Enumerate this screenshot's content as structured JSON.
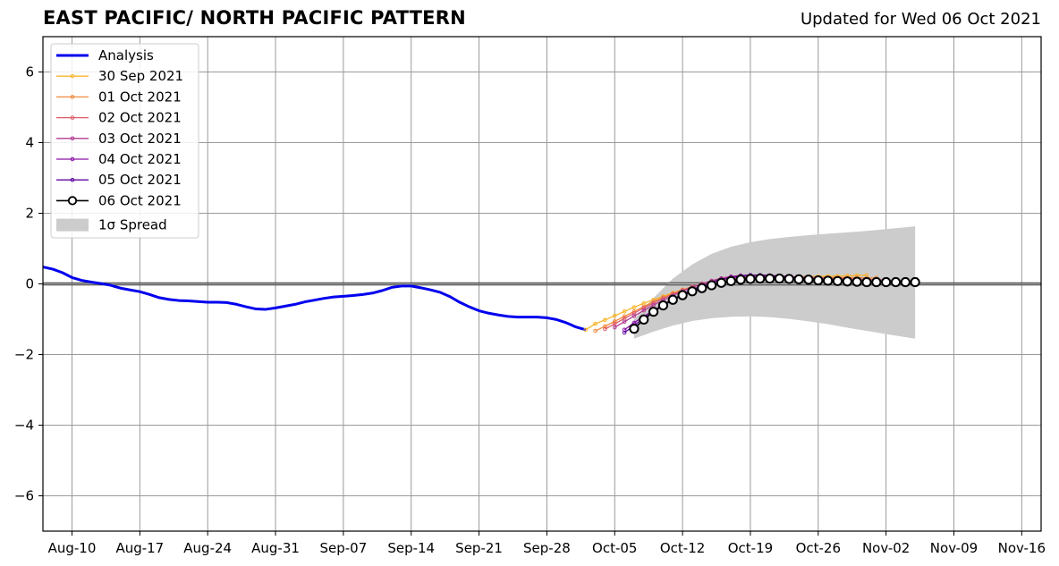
{
  "header": {
    "title": "EAST PACIFIC/ NORTH PACIFIC PATTERN",
    "updated": "Updated for Wed 06 Oct 2021"
  },
  "chart_data": {
    "type": "line",
    "title": "EAST PACIFIC/ NORTH PACIFIC PATTERN",
    "subtitle": "Updated for Wed 06 Oct 2021",
    "xlabel": "",
    "ylabel": "",
    "ylim": [
      -7,
      7
    ],
    "xlim": [
      "2021-08-07",
      "2021-11-18"
    ],
    "grid": true,
    "legend_position": "upper-left",
    "x_tick_labels": [
      "Aug-10",
      "Aug-17",
      "Aug-24",
      "Aug-31",
      "Sep-07",
      "Sep-14",
      "Sep-21",
      "Sep-28",
      "Oct-05",
      "Oct-12",
      "Oct-19",
      "Oct-26",
      "Nov-02",
      "Nov-09",
      "Nov-16"
    ],
    "x_tick_dates": [
      "2021-08-10",
      "2021-08-17",
      "2021-08-24",
      "2021-08-31",
      "2021-09-07",
      "2021-09-14",
      "2021-09-21",
      "2021-09-28",
      "2021-10-05",
      "2021-10-12",
      "2021-10-19",
      "2021-10-26",
      "2021-11-02",
      "2021-11-09",
      "2021-11-16"
    ],
    "y_tick_labels": [
      "−6",
      "−4",
      "−2",
      "0",
      "2",
      "4",
      "6"
    ],
    "y_ticks": [
      -6,
      -4,
      -2,
      0,
      2,
      4,
      6
    ],
    "analysis": {
      "name": "Analysis",
      "color": "#0000ee",
      "x": [
        "2021-08-07",
        "2021-08-08",
        "2021-08-09",
        "2021-08-10",
        "2021-08-11",
        "2021-08-12",
        "2021-08-13",
        "2021-08-14",
        "2021-08-15",
        "2021-08-16",
        "2021-08-17",
        "2021-08-18",
        "2021-08-19",
        "2021-08-20",
        "2021-08-21",
        "2021-08-22",
        "2021-08-23",
        "2021-08-24",
        "2021-08-25",
        "2021-08-26",
        "2021-08-27",
        "2021-08-28",
        "2021-08-29",
        "2021-08-30",
        "2021-08-31",
        "2021-09-01",
        "2021-09-02",
        "2021-09-03",
        "2021-09-04",
        "2021-09-05",
        "2021-09-06",
        "2021-09-07",
        "2021-09-08",
        "2021-09-09",
        "2021-09-10",
        "2021-09-11",
        "2021-09-12",
        "2021-09-13",
        "2021-09-14",
        "2021-09-15",
        "2021-09-16",
        "2021-09-17",
        "2021-09-18",
        "2021-09-19",
        "2021-09-20",
        "2021-09-21",
        "2021-09-22",
        "2021-09-23",
        "2021-09-24",
        "2021-09-25",
        "2021-09-26",
        "2021-09-27",
        "2021-09-28",
        "2021-09-29",
        "2021-09-30",
        "2021-10-01",
        "2021-10-02"
      ],
      "y": [
        0.48,
        0.42,
        0.32,
        0.18,
        0.1,
        0.05,
        0.01,
        -0.04,
        -0.12,
        -0.17,
        -0.22,
        -0.3,
        -0.39,
        -0.44,
        -0.47,
        -0.48,
        -0.5,
        -0.52,
        -0.52,
        -0.53,
        -0.58,
        -0.65,
        -0.71,
        -0.72,
        -0.68,
        -0.63,
        -0.58,
        -0.51,
        -0.46,
        -0.41,
        -0.37,
        -0.35,
        -0.33,
        -0.3,
        -0.26,
        -0.19,
        -0.1,
        -0.06,
        -0.06,
        -0.11,
        -0.17,
        -0.24,
        -0.36,
        -0.52,
        -0.65,
        -0.76,
        -0.83,
        -0.88,
        -0.92,
        -0.94,
        -0.94,
        -0.94,
        -0.96,
        -1.01,
        -1.1,
        -1.22,
        -1.3
      ]
    },
    "forecasts": [
      {
        "name": "30 Sep 2021",
        "color": "#f9b52f",
        "x": [
          "2021-10-02",
          "2021-10-03",
          "2021-10-04",
          "2021-10-05",
          "2021-10-06",
          "2021-10-07",
          "2021-10-08",
          "2021-10-09",
          "2021-10-10",
          "2021-10-11",
          "2021-10-12",
          "2021-10-13",
          "2021-10-14",
          "2021-10-15",
          "2021-10-16",
          "2021-10-17",
          "2021-10-18",
          "2021-10-19",
          "2021-10-20",
          "2021-10-21",
          "2021-10-22",
          "2021-10-23",
          "2021-10-24",
          "2021-10-25",
          "2021-10-26",
          "2021-10-27",
          "2021-10-28",
          "2021-10-29",
          "2021-10-30",
          "2021-10-31"
        ],
        "y": [
          -1.3,
          -1.13,
          -1.02,
          -0.9,
          -0.78,
          -0.66,
          -0.55,
          -0.45,
          -0.35,
          -0.25,
          -0.16,
          -0.08,
          0.0,
          0.06,
          0.1,
          0.13,
          0.15,
          0.16,
          0.17,
          0.18,
          0.19,
          0.2,
          0.2,
          0.21,
          0.21,
          0.22,
          0.22,
          0.23,
          0.24,
          0.25
        ]
      },
      {
        "name": "01 Oct 2021",
        "color": "#f28b3d",
        "x": [
          "2021-10-03",
          "2021-10-04",
          "2021-10-05",
          "2021-10-06",
          "2021-10-07",
          "2021-10-08",
          "2021-10-09",
          "2021-10-10",
          "2021-10-11",
          "2021-10-12",
          "2021-10-13",
          "2021-10-14",
          "2021-10-15",
          "2021-10-16",
          "2021-10-17",
          "2021-10-18",
          "2021-10-19",
          "2021-10-20",
          "2021-10-21",
          "2021-10-22",
          "2021-10-23",
          "2021-10-24",
          "2021-10-25",
          "2021-10-26",
          "2021-10-27",
          "2021-10-28",
          "2021-10-29",
          "2021-10-30",
          "2021-10-31",
          "2021-11-01"
        ],
        "y": [
          -1.33,
          -1.2,
          -1.06,
          -0.92,
          -0.78,
          -0.64,
          -0.5,
          -0.38,
          -0.27,
          -0.17,
          -0.08,
          0.0,
          0.07,
          0.12,
          0.15,
          0.17,
          0.18,
          0.18,
          0.19,
          0.19,
          0.19,
          0.19,
          0.19,
          0.18,
          0.18,
          0.18,
          0.18,
          0.18,
          0.17,
          0.17
        ]
      },
      {
        "name": "02 Oct 2021",
        "color": "#de5d6a",
        "x": [
          "2021-10-04",
          "2021-10-05",
          "2021-10-06",
          "2021-10-07",
          "2021-10-08",
          "2021-10-09",
          "2021-10-10",
          "2021-10-11",
          "2021-10-12",
          "2021-10-13",
          "2021-10-14",
          "2021-10-15",
          "2021-10-16",
          "2021-10-17",
          "2021-10-18",
          "2021-10-19",
          "2021-10-20",
          "2021-10-21",
          "2021-10-22",
          "2021-10-23",
          "2021-10-24",
          "2021-10-25",
          "2021-10-26",
          "2021-10-27",
          "2021-10-28",
          "2021-10-29",
          "2021-10-30",
          "2021-10-31",
          "2021-11-01",
          "2021-11-02"
        ],
        "y": [
          -1.28,
          -1.13,
          -0.98,
          -0.83,
          -0.68,
          -0.54,
          -0.41,
          -0.29,
          -0.18,
          -0.08,
          0.01,
          0.08,
          0.13,
          0.17,
          0.19,
          0.2,
          0.21,
          0.21,
          0.21,
          0.2,
          0.2,
          0.19,
          0.18,
          0.17,
          0.16,
          0.15,
          0.14,
          0.13,
          0.12,
          0.11
        ]
      },
      {
        "name": "03 Oct 2021",
        "color": "#b23d94",
        "x": [
          "2021-10-05",
          "2021-10-06",
          "2021-10-07",
          "2021-10-08",
          "2021-10-09",
          "2021-10-10",
          "2021-10-11",
          "2021-10-12",
          "2021-10-13",
          "2021-10-14",
          "2021-10-15",
          "2021-10-16",
          "2021-10-17",
          "2021-10-18",
          "2021-10-19",
          "2021-10-20",
          "2021-10-21",
          "2021-10-22",
          "2021-10-23",
          "2021-10-24",
          "2021-10-25",
          "2021-10-26",
          "2021-10-27",
          "2021-10-28",
          "2021-10-29",
          "2021-10-30",
          "2021-10-31",
          "2021-11-01",
          "2021-11-02",
          "2021-11-03"
        ],
        "y": [
          -1.23,
          -1.07,
          -0.91,
          -0.75,
          -0.6,
          -0.46,
          -0.33,
          -0.21,
          -0.1,
          0.0,
          0.09,
          0.16,
          0.21,
          0.24,
          0.25,
          0.25,
          0.24,
          0.23,
          0.21,
          0.19,
          0.17,
          0.15,
          0.13,
          0.11,
          0.1,
          0.09,
          0.08,
          0.07,
          0.07,
          0.06
        ]
      },
      {
        "name": "04 Oct 2021",
        "color": "#8a13a8",
        "x": [
          "2021-10-06",
          "2021-10-07",
          "2021-10-08",
          "2021-10-09",
          "2021-10-10",
          "2021-10-11",
          "2021-10-12",
          "2021-10-13",
          "2021-10-14",
          "2021-10-15",
          "2021-10-16",
          "2021-10-17",
          "2021-10-18",
          "2021-10-19",
          "2021-10-20",
          "2021-10-21",
          "2021-10-22",
          "2021-10-23",
          "2021-10-24",
          "2021-10-25",
          "2021-10-26",
          "2021-10-27",
          "2021-10-28",
          "2021-10-29",
          "2021-10-30",
          "2021-10-31",
          "2021-11-01",
          "2021-11-02",
          "2021-11-03",
          "2021-11-04"
        ],
        "y": [
          -1.3,
          -1.1,
          -0.92,
          -0.75,
          -0.58,
          -0.43,
          -0.29,
          -0.16,
          -0.05,
          0.05,
          0.13,
          0.19,
          0.23,
          0.25,
          0.25,
          0.24,
          0.22,
          0.2,
          0.17,
          0.14,
          0.12,
          0.1,
          0.08,
          0.07,
          0.06,
          0.05,
          0.05,
          0.04,
          0.04,
          0.04
        ]
      },
      {
        "name": "05 Oct 2021",
        "color": "#5c0aa0",
        "x": [
          "2021-10-06",
          "2021-10-07",
          "2021-10-08",
          "2021-10-09",
          "2021-10-10",
          "2021-10-11",
          "2021-10-12",
          "2021-10-13",
          "2021-10-14",
          "2021-10-15",
          "2021-10-16",
          "2021-10-17",
          "2021-10-18",
          "2021-10-19",
          "2021-10-20",
          "2021-10-21",
          "2021-10-22",
          "2021-10-23",
          "2021-10-24",
          "2021-10-25",
          "2021-10-26",
          "2021-10-27",
          "2021-10-28",
          "2021-10-29",
          "2021-10-30",
          "2021-10-31",
          "2021-11-01",
          "2021-11-02",
          "2021-11-03",
          "2021-11-04"
        ],
        "y": [
          -1.38,
          -1.18,
          -0.97,
          -0.78,
          -0.6,
          -0.44,
          -0.3,
          -0.17,
          -0.06,
          0.04,
          0.12,
          0.18,
          0.22,
          0.24,
          0.24,
          0.23,
          0.21,
          0.18,
          0.15,
          0.12,
          0.1,
          0.08,
          0.07,
          0.06,
          0.05,
          0.05,
          0.05,
          0.05,
          0.05,
          0.05
        ]
      },
      {
        "name": "06 Oct 2021",
        "color": "#000000",
        "open_markers": true,
        "x": [
          "2021-10-07",
          "2021-10-08",
          "2021-10-09",
          "2021-10-10",
          "2021-10-11",
          "2021-10-12",
          "2021-10-13",
          "2021-10-14",
          "2021-10-15",
          "2021-10-16",
          "2021-10-17",
          "2021-10-18",
          "2021-10-19",
          "2021-10-20",
          "2021-10-21",
          "2021-10-22",
          "2021-10-23",
          "2021-10-24",
          "2021-10-25",
          "2021-10-26",
          "2021-10-27",
          "2021-10-28",
          "2021-10-29",
          "2021-10-30",
          "2021-10-31",
          "2021-11-01",
          "2021-11-02",
          "2021-11-03",
          "2021-11-04",
          "2021-11-05"
        ],
        "y": [
          -1.27,
          -1.01,
          -0.79,
          -0.61,
          -0.45,
          -0.32,
          -0.21,
          -0.12,
          -0.04,
          0.03,
          0.08,
          0.12,
          0.14,
          0.15,
          0.15,
          0.15,
          0.14,
          0.13,
          0.12,
          0.1,
          0.09,
          0.08,
          0.07,
          0.06,
          0.05,
          0.05,
          0.05,
          0.05,
          0.05,
          0.05
        ]
      }
    ],
    "spread": {
      "name": "1σ Spread",
      "color": "#cccccc",
      "x": [
        "2021-10-07",
        "2021-10-09",
        "2021-10-11",
        "2021-10-13",
        "2021-10-15",
        "2021-10-17",
        "2021-10-19",
        "2021-10-21",
        "2021-10-23",
        "2021-10-25",
        "2021-10-27",
        "2021-10-29",
        "2021-10-31",
        "2021-11-02",
        "2021-11-05"
      ],
      "upper": [
        -1.0,
        -0.4,
        0.15,
        0.55,
        0.85,
        1.05,
        1.18,
        1.27,
        1.33,
        1.38,
        1.42,
        1.46,
        1.5,
        1.55,
        1.63
      ],
      "lower": [
        -1.55,
        -1.35,
        -1.18,
        -1.05,
        -0.97,
        -0.93,
        -0.92,
        -0.94,
        -0.99,
        -1.06,
        -1.14,
        -1.24,
        -1.33,
        -1.42,
        -1.55
      ]
    },
    "zero_line": 0
  }
}
